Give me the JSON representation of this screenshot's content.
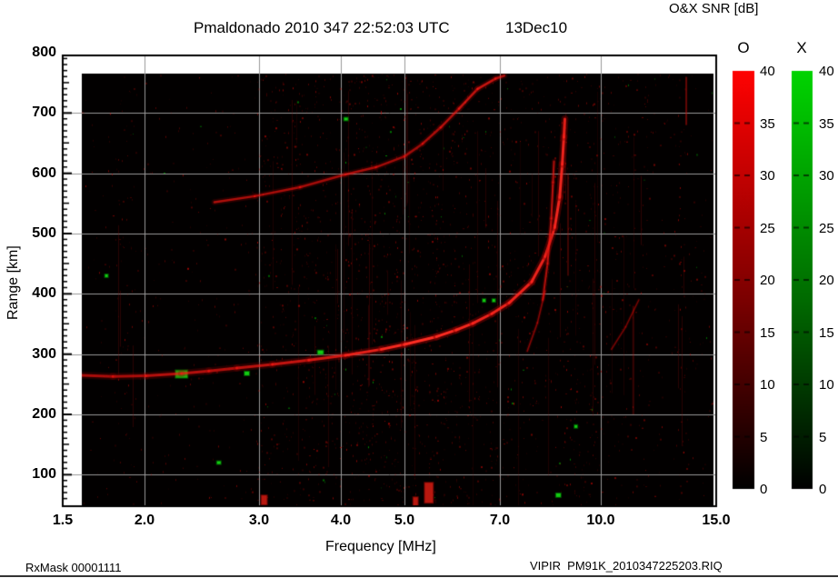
{
  "header": {
    "title": "Pmaldonado 2010 347 22:52:03 UTC",
    "date": "13Dec10",
    "colorbar_title": "O&X SNR [dB]"
  },
  "footer": {
    "rx_mask": "RxMask 00001111",
    "filename": "VIPIR  PM91K_2010347225203.RIQ"
  },
  "colors": {
    "background": "#ffffff",
    "plot_background": "#020000",
    "grid": "#999999",
    "o_mode": "#ff0000",
    "x_mode": "#00cc00",
    "frame": "#000000"
  },
  "chart_data": {
    "type": "heatmap",
    "subtype": "ionogram",
    "title": "Pmaldonado 2010 347 22:52:03 UTC",
    "date_label": "13Dec10",
    "xlabel": "Frequency [MHz]",
    "ylabel": "Range [km]",
    "x_scale": "log",
    "x_range": [
      1.5,
      15.0
    ],
    "x_ticks": [
      {
        "f": 1.5,
        "label": "1.5"
      },
      {
        "f": 2.0,
        "label": "2.0"
      },
      {
        "f": 3.0,
        "label": "3.0"
      },
      {
        "f": 4.0,
        "label": "4.0"
      },
      {
        "f": 5.0,
        "label": "5.0"
      },
      {
        "f": 7.0,
        "label": "7.0"
      },
      {
        "f": 10.0,
        "label": "10.0"
      },
      {
        "f": 15.0,
        "label": "15.0"
      }
    ],
    "y_range_km": [
      45,
      800
    ],
    "y_ticks": [
      {
        "km": 100,
        "label": "100"
      },
      {
        "km": 200,
        "label": "200"
      },
      {
        "km": 300,
        "label": "300"
      },
      {
        "km": 400,
        "label": "400"
      },
      {
        "km": 500,
        "label": "500"
      },
      {
        "km": 600,
        "label": "600"
      },
      {
        "km": 700,
        "label": "700"
      },
      {
        "km": 800,
        "label": "800"
      }
    ],
    "grid": true,
    "grid_color": "#999999",
    "colorbars": [
      {
        "label": "O",
        "min": 0,
        "max": 40,
        "ticks": [
          40,
          35,
          30,
          25,
          20,
          15,
          10,
          5,
          0
        ],
        "top_color": "#ff0202",
        "mid_color": "#7a0000",
        "bottom_color": "#000000",
        "units": "dB"
      },
      {
        "label": "X",
        "min": 0,
        "max": 40,
        "ticks": [
          40,
          35,
          30,
          25,
          20,
          15,
          10,
          5,
          0
        ],
        "top_color": "#00d400",
        "mid_color": "#006a00",
        "bottom_color": "#000000",
        "units": "dB"
      }
    ],
    "traces": [
      {
        "name": "F-layer O-mode first hop",
        "mode": "O",
        "width": 3,
        "points": [
          [
            1.6,
            265,
            0.5
          ],
          [
            1.79,
            263,
            0.45
          ],
          [
            2.01,
            264,
            0.5
          ],
          [
            2.28,
            268,
            0.6
          ],
          [
            2.51,
            272,
            0.5
          ],
          [
            2.77,
            277,
            0.55
          ],
          [
            3.14,
            283,
            0.6
          ],
          [
            3.57,
            290,
            0.65
          ],
          [
            4.06,
            298,
            0.75
          ],
          [
            4.61,
            308,
            0.9
          ],
          [
            5.0,
            316,
            1.0
          ],
          [
            5.6,
            329,
            1.0
          ],
          [
            6.0,
            340,
            0.95
          ],
          [
            6.36,
            351,
            0.9
          ],
          [
            6.8,
            367,
            0.85
          ],
          [
            7.23,
            385,
            0.9
          ],
          [
            7.83,
            420,
            0.85
          ],
          [
            8.21,
            462,
            0.85
          ],
          [
            8.49,
            510,
            0.9
          ],
          [
            8.64,
            560,
            0.9
          ],
          [
            8.72,
            615,
            0.9
          ],
          [
            8.77,
            660,
            0.85
          ],
          [
            8.8,
            690,
            0.75
          ]
        ]
      },
      {
        "name": "cusp inner branch",
        "mode": "O",
        "width": 2,
        "points": [
          [
            8.14,
            390,
            0.45
          ],
          [
            8.28,
            450,
            0.55
          ],
          [
            8.39,
            525,
            0.6
          ],
          [
            8.44,
            585,
            0.55
          ],
          [
            8.47,
            620,
            0.45
          ]
        ]
      },
      {
        "name": "second hop echo",
        "mode": "O",
        "width": 2.5,
        "points": [
          [
            2.56,
            552,
            0.5
          ],
          [
            2.95,
            562,
            0.5
          ],
          [
            3.46,
            577,
            0.45
          ],
          [
            4.06,
            598,
            0.45
          ],
          [
            4.52,
            610,
            0.5
          ],
          [
            5.0,
            628,
            0.38
          ],
          [
            5.33,
            649,
            0.45
          ],
          [
            5.68,
            676,
            0.5
          ],
          [
            6.06,
            707,
            0.55
          ],
          [
            6.47,
            740,
            0.65
          ],
          [
            6.89,
            757,
            0.6
          ],
          [
            7.11,
            762,
            0.45
          ]
        ]
      },
      {
        "name": "faint oblique echo near cusp",
        "mode": "O",
        "width": 1.6,
        "points": [
          [
            7.71,
            305,
            0.3
          ],
          [
            7.99,
            352,
            0.3
          ],
          [
            8.21,
            405,
            0.28
          ]
        ]
      },
      {
        "name": "faint oblique echo 10-11 MHz",
        "mode": "O",
        "width": 1.4,
        "points": [
          [
            10.37,
            308,
            0.25
          ],
          [
            10.9,
            345,
            0.25
          ],
          [
            11.42,
            390,
            0.22
          ]
        ]
      }
    ],
    "green_blobs": [
      [
        2.28,
        267,
        13,
        8
      ],
      [
        2.87,
        268,
        5,
        4
      ],
      [
        3.72,
        303,
        6,
        4
      ],
      [
        4.07,
        690,
        4,
        3
      ],
      [
        6.62,
        389,
        3,
        3
      ],
      [
        6.85,
        389,
        3,
        3
      ],
      [
        8.6,
        66,
        5,
        4
      ],
      [
        9.15,
        180,
        3,
        3
      ],
      [
        1.75,
        430,
        3,
        3
      ],
      [
        2.6,
        120,
        4,
        3
      ]
    ],
    "red_blobs": [
      [
        5.45,
        70,
        9,
        22
      ],
      [
        5.2,
        55,
        5,
        10
      ],
      [
        3.05,
        58,
        6,
        10
      ]
    ],
    "rfi_streaks": [
      {
        "f": 13.5,
        "km": [
          680,
          760
        ],
        "alpha": 0.5
      },
      {
        "f": 11.2,
        "km": [
          200,
          380
        ],
        "alpha": 0.28
      },
      {
        "f": 8.9,
        "km": [
          430,
          600
        ],
        "alpha": 0.3
      }
    ],
    "noise_bands_mhz": [
      [
        1.6,
        1.8,
        0.25
      ],
      [
        1.8,
        1.95,
        0.5
      ],
      [
        1.95,
        2.33,
        0.22
      ],
      [
        2.33,
        2.42,
        0.35
      ],
      [
        2.42,
        2.97,
        0.3
      ],
      [
        2.97,
        3.14,
        0.8
      ],
      [
        3.14,
        4.04,
        0.85
      ],
      [
        4.04,
        6.35,
        1.1
      ],
      [
        6.35,
        7.85,
        0.65
      ],
      [
        7.85,
        8.75,
        0.5
      ],
      [
        8.75,
        9.95,
        0.9
      ],
      [
        9.95,
        11.85,
        0.55
      ],
      [
        11.85,
        13.1,
        0.35
      ],
      [
        13.1,
        14.0,
        0.8
      ],
      [
        14.0,
        15.0,
        0.3
      ]
    ]
  }
}
